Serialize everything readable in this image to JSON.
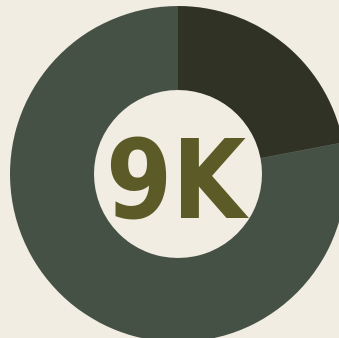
{
  "colors": {
    "background": "#f1ede3",
    "label": "#5c5a26",
    "hole": "#f1ede3"
  },
  "chart_data": {
    "type": "pie",
    "style": "donut",
    "center_label": "9K",
    "slices": [
      {
        "value": 0.22,
        "color": "#2f3224"
      },
      {
        "value": 0.78,
        "color": "#465146"
      }
    ],
    "start": "top",
    "direction": "clockwise"
  }
}
